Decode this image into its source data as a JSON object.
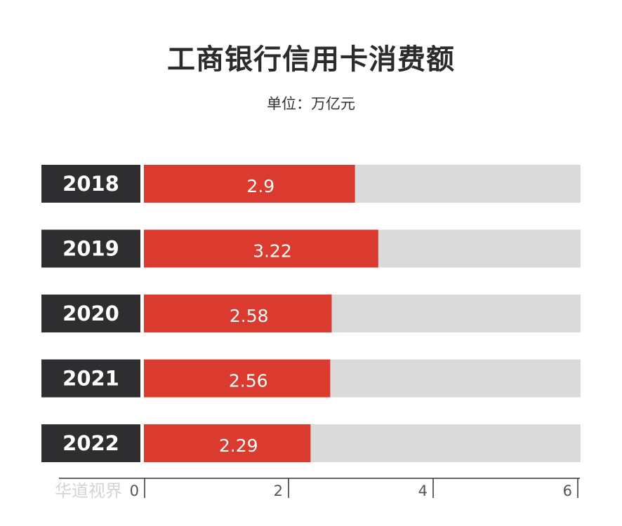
{
  "title": "工商银行信用卡消费额",
  "subtitle": "单位：万亿元",
  "watermark": "华道视界",
  "colors": {
    "bar": "#db3a2e",
    "track": "#d9dad9",
    "year_box": "#2e2e30",
    "year_text": "#ffffff",
    "value_text": "#ffffff",
    "axis": "#333333",
    "tick_text": "#555555"
  },
  "chart_data": {
    "type": "bar",
    "orientation": "horizontal",
    "categories": [
      "2018",
      "2019",
      "2020",
      "2021",
      "2022"
    ],
    "values": [
      2.9,
      3.22,
      2.58,
      2.56,
      2.29
    ],
    "value_labels": [
      "2.9",
      "3.22",
      "2.58",
      "2.56",
      "2.29"
    ],
    "xlim": [
      0,
      6
    ],
    "xticks": [
      0,
      2,
      4,
      6
    ],
    "xtick_labels": [
      "0",
      "2",
      "4",
      "6"
    ],
    "grid": false,
    "title": "工商银行信用卡消费额",
    "subtitle": "单位：万亿元",
    "xlabel": "",
    "ylabel": ""
  }
}
